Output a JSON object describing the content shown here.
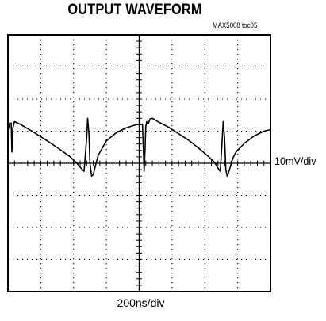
{
  "title": "OUTPUT WAVEFORM",
  "figure_tag": "MAX5008 toc05",
  "vertical_scale": "10mV/div",
  "horizontal_scale": "200ns/div",
  "chart_data": {
    "type": "line",
    "title": "OUTPUT WAVEFORM",
    "xlabel": "200ns/div",
    "ylabel": "10mV/div",
    "x_divisions": 8,
    "y_divisions": 8,
    "grid": true,
    "xlim": [
      0,
      8
    ],
    "ylim": [
      -4,
      4
    ],
    "series": [
      {
        "values_x": [
          0.0,
          0.05,
          0.1,
          0.12,
          0.15,
          0.2,
          0.4,
          0.7,
          1.0,
          1.3,
          1.6,
          1.9,
          2.1,
          2.25,
          2.32,
          2.4,
          2.43,
          2.47,
          2.5,
          2.55,
          2.6,
          2.66,
          2.75,
          3.0,
          3.3,
          3.6,
          3.9,
          4.1,
          4.15,
          4.18,
          4.2,
          4.23,
          4.27,
          4.33,
          4.4,
          4.6,
          4.9,
          5.2,
          5.5,
          5.8,
          6.1,
          6.3,
          6.4,
          6.47,
          6.52,
          6.56,
          6.6,
          6.64,
          6.68,
          6.72,
          6.78,
          6.85,
          6.95,
          7.2,
          7.5,
          7.8,
          8.0
        ],
        "values_y": [
          1.0,
          1.25,
          1.25,
          0.35,
          1.1,
          1.3,
          1.2,
          1.02,
          0.83,
          0.63,
          0.42,
          0.2,
          0.0,
          -0.18,
          -0.25,
          0.8,
          1.4,
          0.9,
          0.0,
          -0.4,
          -0.35,
          -0.1,
          0.25,
          0.7,
          0.95,
          1.1,
          1.2,
          1.22,
          -0.25,
          0.45,
          1.15,
          1.3,
          1.22,
          1.38,
          1.4,
          1.28,
          1.12,
          0.92,
          0.72,
          0.48,
          0.22,
          0.02,
          -0.15,
          -0.25,
          0.6,
          1.3,
          0.8,
          -0.2,
          -0.4,
          -0.3,
          -0.1,
          0.15,
          0.35,
          0.62,
          0.85,
          1.0,
          1.05
        ]
      }
    ]
  }
}
